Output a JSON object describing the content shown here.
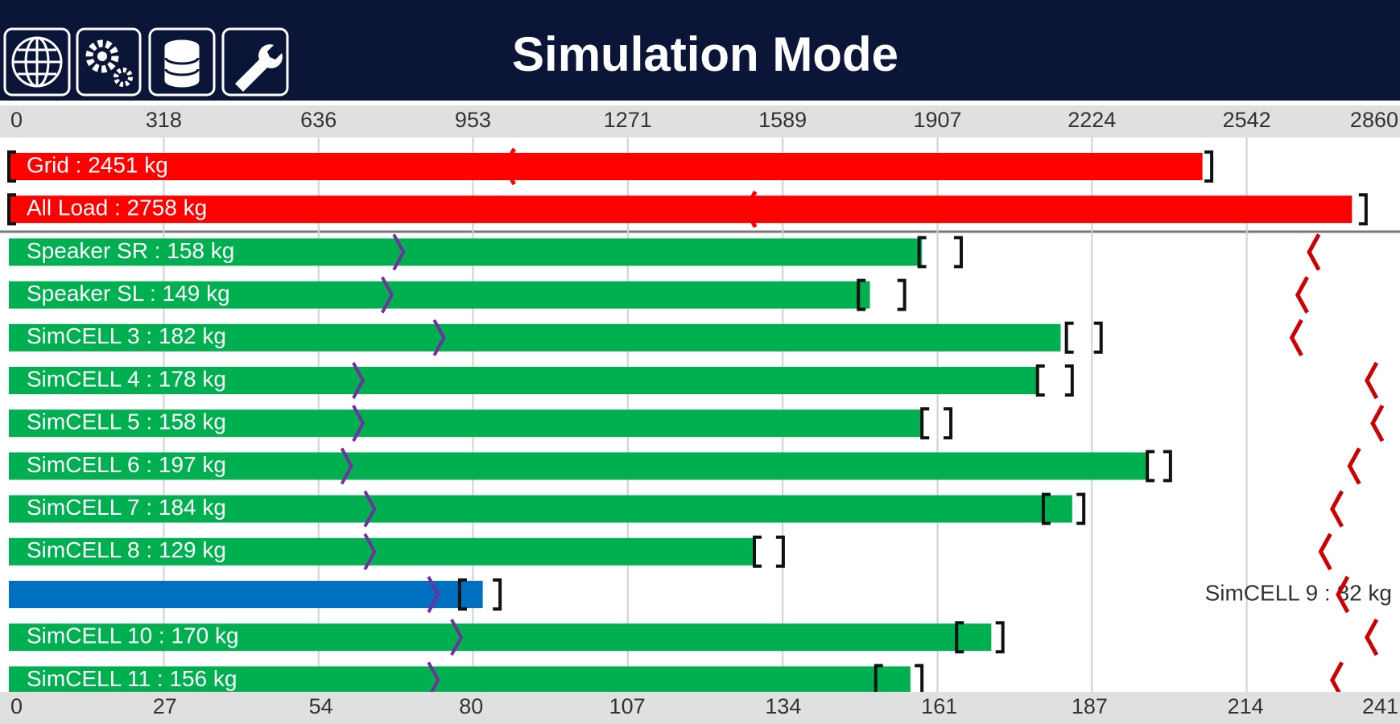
{
  "header": {
    "title": "Simulation Mode"
  },
  "chart_data": {
    "type": "bar",
    "orientation": "horizontal",
    "xlim": [
      0,
      2860
    ],
    "xticks": [
      0,
      318,
      636,
      953,
      1271,
      1589,
      1907,
      2224,
      2542,
      2860
    ],
    "x2lim": [
      0,
      241
    ],
    "x2ticks": [
      0,
      27,
      54,
      80,
      107,
      134,
      161,
      187,
      214,
      241
    ],
    "grid": true,
    "min_color": "#7030a0",
    "max_color": "#cc0000",
    "rows": [
      {
        "value_label": "Grid : 2451 kg",
        "value": 2451,
        "color": "#ff0000",
        "axis": "x",
        "bracket": [
          0,
          2470
        ],
        "max": 1018
      },
      {
        "value_label": "All Load : 2758 kg",
        "value": 2758,
        "color": "#ff0000",
        "axis": "x",
        "bracket": [
          0,
          2787
        ],
        "max": 1513
      },
      {
        "value_label": "Speaker SR : 158 kg",
        "value": 158,
        "color": "#00b050",
        "axis": "x2",
        "min": 68,
        "bracket": [
          157.5,
          164.8
        ],
        "max": 225
      },
      {
        "value_label": "Speaker SL : 149 kg",
        "value": 149,
        "color": "#00b050",
        "axis": "x2",
        "min": 66,
        "bracket": [
          147,
          155
        ],
        "max": 223
      },
      {
        "value_label": "SimCELL 3 : 182 kg",
        "value": 182,
        "color": "#00b050",
        "axis": "x2",
        "min": 75,
        "bracket": [
          183,
          189
        ],
        "max": 222
      },
      {
        "value_label": "SimCELL 4 : 178 kg",
        "value": 178,
        "color": "#00b050",
        "axis": "x2",
        "min": 61,
        "bracket": [
          178,
          184
        ],
        "max": 235
      },
      {
        "value_label": "SimCELL 5 : 158 kg",
        "value": 158,
        "color": "#00b050",
        "axis": "x2",
        "min": 61,
        "bracket": [
          158,
          163
        ],
        "max": 236
      },
      {
        "value_label": "SimCELL 6 : 197 kg",
        "value": 197,
        "color": "#00b050",
        "axis": "x2",
        "min": 59,
        "bracket": [
          197,
          201
        ],
        "max": 232
      },
      {
        "value_label": "SimCELL 7 : 184 kg",
        "value": 184,
        "color": "#00b050",
        "axis": "x2",
        "min": 63,
        "bracket": [
          179,
          186
        ],
        "max": 229
      },
      {
        "value_label": "SimCELL 8 : 129 kg",
        "value": 129,
        "color": "#00b050",
        "axis": "x2",
        "min": 63,
        "bracket": [
          129,
          134
        ],
        "max": 227
      },
      {
        "value_label": "SimCELL 9 : 82 kg",
        "value": 82,
        "color": "#0070c0",
        "axis": "x2",
        "min": 74,
        "bracket": [
          78,
          85
        ],
        "max": 230,
        "label_outside": true
      },
      {
        "value_label": "SimCELL 10 : 170 kg",
        "value": 170,
        "color": "#00b050",
        "axis": "x2",
        "min": 78,
        "bracket": [
          164,
          172
        ],
        "max": 235
      },
      {
        "value_label": "SimCELL 11 : 156 kg",
        "value": 156,
        "color": "#00b050",
        "axis": "x2",
        "min": 74,
        "bracket": [
          150,
          158
        ],
        "max": 229
      }
    ]
  }
}
